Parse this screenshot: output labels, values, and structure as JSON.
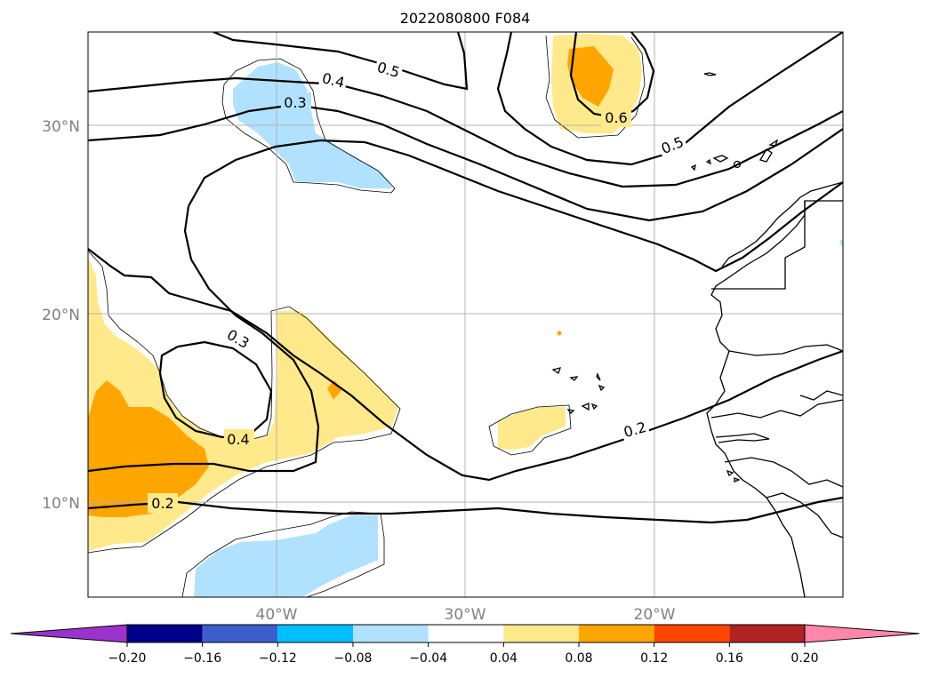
{
  "title": "2022080800 F084",
  "map": {
    "lat_labels": [
      "30°N",
      "20°N",
      "10°N"
    ],
    "lon_labels": [
      "40°W",
      "30°W",
      "20°W"
    ],
    "contour_labels": [
      "0.5",
      "0.4",
      "0.3",
      "0.6",
      "0.5",
      "0.3",
      "0.4",
      "0.2",
      "0.2"
    ]
  },
  "colorbar": {
    "ticks": [
      "−0.20",
      "−0.16",
      "−0.12",
      "−0.08",
      "−0.04",
      "0.04",
      "0.08",
      "0.12",
      "0.16",
      "0.20"
    ],
    "colors": {
      "under": "#9933cc",
      "bins": [
        "#00008b",
        "#3a5fcd",
        "#00bfff",
        "#b0e2ff",
        "#ffffff",
        "#ffe98a",
        "#ffa500",
        "#ff4500",
        "#b22222"
      ],
      "over": "#ff88aa"
    }
  },
  "colors": {
    "light_blue": "#b0e2ff",
    "light_yellow": "#ffe98a",
    "orange": "#ffa500"
  }
}
